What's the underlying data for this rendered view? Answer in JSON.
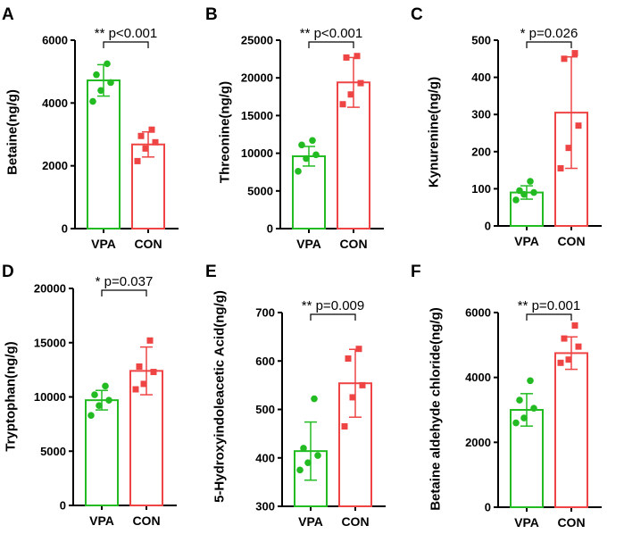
{
  "colors": {
    "vpa": "#22bb22",
    "con": "#ee4444",
    "axis": "#000000"
  },
  "chart_data": [
    {
      "type": "bar",
      "panel_letter": "A",
      "ylabel": "Betaine(ng/g)",
      "categories": [
        "VPA",
        "CON"
      ],
      "ylim": [
        0,
        6000
      ],
      "yticks": [
        0,
        2000,
        4000,
        6000
      ],
      "means": [
        4720,
        2680
      ],
      "sd": [
        500,
        400
      ],
      "points": [
        [
          4050,
          4400,
          4650,
          4900,
          5250
        ],
        [
          2150,
          2550,
          2750,
          2950,
          3150
        ]
      ],
      "annotation": "** p<0.001"
    },
    {
      "type": "bar",
      "panel_letter": "B",
      "ylabel": "Threonine(ng/g)",
      "categories": [
        "VPA",
        "CON"
      ],
      "ylim": [
        0,
        25000
      ],
      "yticks": [
        0,
        5000,
        10000,
        15000,
        20000,
        25000
      ],
      "means": [
        9600,
        19400
      ],
      "sd": [
        1300,
        3300
      ],
      "points": [
        [
          7600,
          9300,
          9800,
          11100,
          11700
        ],
        [
          16500,
          17800,
          19300,
          22700,
          22900
        ]
      ],
      "annotation": "** p<0.001"
    },
    {
      "type": "bar",
      "panel_letter": "C",
      "ylabel": "Kynurenine(ng/g)",
      "categories": [
        "VPA",
        "CON"
      ],
      "ylim": [
        0,
        500
      ],
      "yticks": [
        0,
        100,
        200,
        300,
        400,
        500
      ],
      "means": [
        90,
        305
      ],
      "sd": [
        18,
        150
      ],
      "points": [
        [
          70,
          85,
          90,
          95,
          120
        ],
        [
          155,
          210,
          270,
          450,
          465
        ]
      ],
      "annotation": "* p=0.026"
    },
    {
      "type": "bar",
      "panel_letter": "D",
      "ylabel": "Tryptophan(ng/g)",
      "categories": [
        "VPA",
        "CON"
      ],
      "ylim": [
        0,
        20000
      ],
      "yticks": [
        0,
        5000,
        10000,
        15000,
        20000
      ],
      "means": [
        9700,
        12400
      ],
      "sd": [
        900,
        2200
      ],
      "points": [
        [
          8300,
          9200,
          9700,
          10200,
          11000
        ],
        [
          10700,
          11200,
          12300,
          12800,
          15200
        ]
      ],
      "annotation": "* p=0.037"
    },
    {
      "type": "bar",
      "panel_letter": "E",
      "ylabel": "5-Hydroxyindoleacetic Acid(ng/g)",
      "categories": [
        "VPA",
        "CON"
      ],
      "ylim": [
        300,
        700
      ],
      "yticks": [
        300,
        400,
        500,
        600,
        700
      ],
      "means": [
        414,
        554
      ],
      "sd": [
        60,
        70
      ],
      "points": [
        [
          375,
          390,
          405,
          420,
          522
        ],
        [
          465,
          525,
          550,
          605,
          625
        ]
      ],
      "annotation": "** p=0.009"
    },
    {
      "type": "bar",
      "panel_letter": "F",
      "ylabel": "Betaine aldehyde chloride(ng/g)",
      "categories": [
        "VPA",
        "CON"
      ],
      "ylim": [
        0,
        6000
      ],
      "yticks": [
        0,
        2000,
        4000,
        6000
      ],
      "means": [
        3000,
        4750
      ],
      "sd": [
        500,
        500
      ],
      "points": [
        [
          2600,
          2750,
          3050,
          3300,
          3900
        ],
        [
          4450,
          4550,
          4950,
          5200,
          5600
        ]
      ],
      "annotation": "** p=0.001"
    }
  ]
}
